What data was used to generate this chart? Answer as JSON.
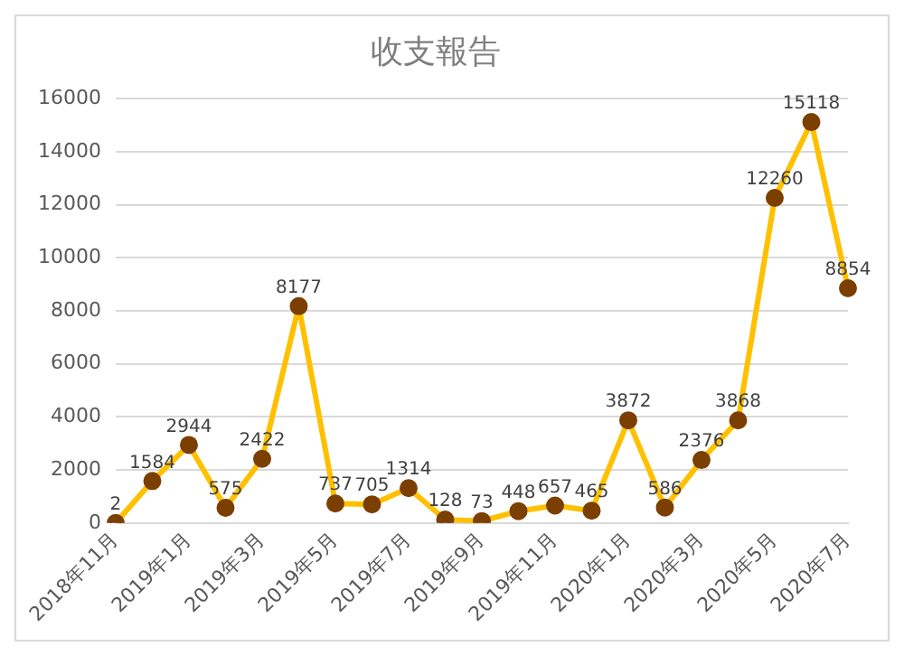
{
  "chart_data": {
    "type": "line",
    "title": "收支報告",
    "categories": [
      "2018年11月",
      null,
      "2019年1月",
      null,
      "2019年3月",
      null,
      "2019年5月",
      null,
      "2019年7月",
      null,
      "2019年9月",
      null,
      "2019年11月",
      null,
      "2020年1月",
      null,
      "2020年3月",
      null,
      "2020年5月",
      null,
      "2020年7月"
    ],
    "series": [
      {
        "color": "#ffc000",
        "values": [
          2,
          1584,
          2944,
          575,
          2422,
          8177,
          737,
          705,
          1314,
          128,
          73,
          448,
          657,
          465,
          3872,
          586,
          2376,
          3868,
          12260,
          15118,
          8854
        ]
      }
    ],
    "ylim": [
      0,
      16000
    ],
    "yticks": [
      0,
      2000,
      4000,
      6000,
      8000,
      10000,
      12000,
      14000,
      16000
    ],
    "grid": "y",
    "marker": "circle",
    "line_style": "solid",
    "data_labels": true,
    "legend": false
  }
}
